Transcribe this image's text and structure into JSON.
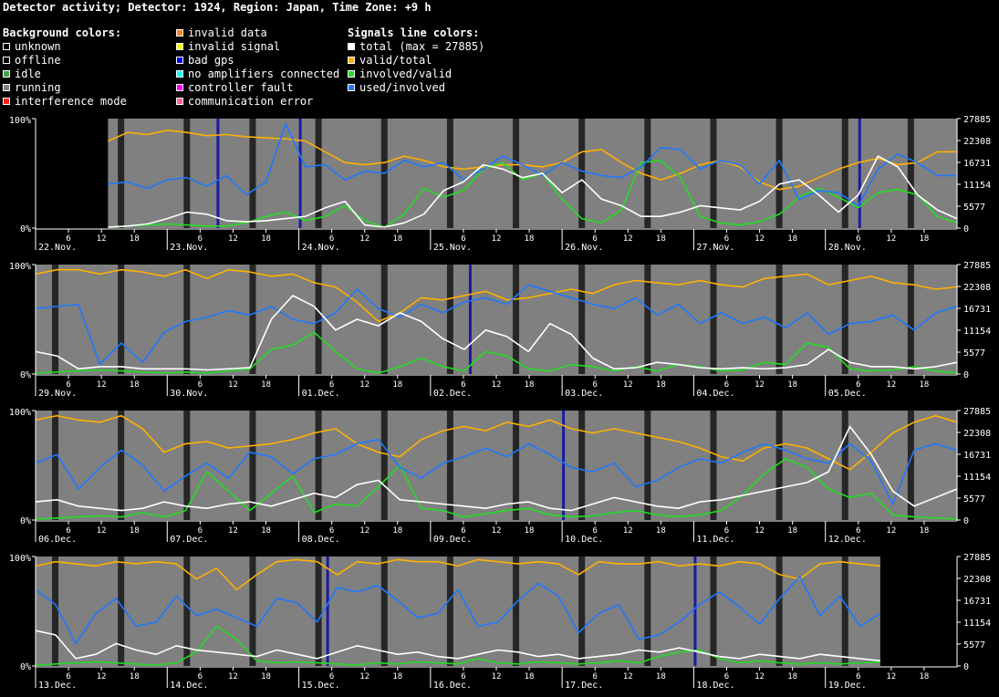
{
  "title": "Detector activity; Detector: 1924, Region: Japan, Time Zone: +9 h",
  "legend": {
    "background_heading": "Background colors:",
    "signals_heading": "Signals line colors:",
    "background_col1": [
      {
        "label": "unknown",
        "color": "#000000"
      },
      {
        "label": "offline",
        "color": "#000000"
      },
      {
        "label": "idle",
        "color": "#44a044"
      },
      {
        "label": "running",
        "color": "#808080"
      },
      {
        "label": "interference mode",
        "color": "#ff2020"
      }
    ],
    "background_col2": [
      {
        "label": "invalid data",
        "color": "#ff8020"
      },
      {
        "label": "invalid signal",
        "color": "#ffff00"
      },
      {
        "label": "bad gps",
        "color": "#0000ff"
      },
      {
        "label": "no amplifiers connected",
        "color": "#00ffff"
      },
      {
        "label": "controller fault",
        "color": "#ff00ff"
      },
      {
        "label": "communication error",
        "color": "#ff6090"
      }
    ],
    "signals": [
      {
        "label": "total (max = 27885)",
        "color": "#ffffff"
      },
      {
        "label": "valid/total",
        "color": "#ffb000"
      },
      {
        "label": "involved/valid",
        "color": "#22dd22"
      },
      {
        "label": "used/involved",
        "color": "#1e78ff"
      }
    ]
  },
  "colors": {
    "running": "#808080",
    "gap": "#262626",
    "bad_gps": "#1a1aa0",
    "total": "#ffffff",
    "valid_total": "#ffb000",
    "involved_valid": "#22dd22",
    "used_involved": "#1e78ff"
  },
  "chart_data": {
    "type": "line",
    "max_total": 27885,
    "left_axis_ticks": [
      "100%",
      "0%"
    ],
    "right_axis_ticks": [
      "27885",
      "22308",
      "16731",
      "11154",
      "5577",
      "0"
    ],
    "hour_ticks": [
      "6",
      "12",
      "18"
    ],
    "panels": [
      {
        "days": [
          "22.Nov.",
          "23.Nov.",
          "24.Nov.",
          "25.Nov.",
          "26.Nov.",
          "27.Nov.",
          "28.Nov."
        ],
        "running_start_hours": 13.2,
        "running_end_hours": 168,
        "bad_gps_hours": [
          33,
          48,
          150
        ],
        "valid_total_pct": [
          80,
          88,
          86,
          90,
          88,
          85,
          86,
          84,
          83,
          82,
          80,
          70,
          60,
          58,
          60,
          66,
          62,
          56,
          54,
          56,
          58,
          58,
          56,
          60,
          70,
          72,
          60,
          50,
          44,
          50,
          58,
          62,
          56,
          42,
          35,
          38,
          46,
          54,
          60,
          64,
          58,
          60,
          70,
          70
        ],
        "involved_valid_pct": [
          0,
          1,
          2,
          3,
          2,
          1,
          1,
          4,
          10,
          14,
          6,
          10,
          20,
          6,
          0,
          12,
          36,
          28,
          34,
          54,
          60,
          44,
          50,
          26,
          8,
          4,
          16,
          60,
          62,
          46,
          10,
          4,
          2,
          5,
          12,
          28,
          36,
          28,
          18,
          32,
          35,
          30,
          10,
          4
        ],
        "used_involved_pct": [
          40,
          42,
          36,
          44,
          46,
          38,
          48,
          30,
          42,
          96,
          56,
          58,
          44,
          52,
          50,
          62,
          56,
          60,
          44,
          54,
          66,
          58,
          48,
          60,
          52,
          48,
          46,
          56,
          74,
          72,
          54,
          62,
          58,
          40,
          62,
          26,
          34,
          32,
          20,
          54,
          68,
          60,
          48,
          48
        ],
        "total_pct": [
          0,
          1,
          3,
          8,
          14,
          12,
          6,
          5,
          6,
          8,
          10,
          18,
          24,
          2,
          0,
          4,
          12,
          34,
          42,
          58,
          54,
          46,
          50,
          32,
          44,
          26,
          20,
          10,
          10,
          14,
          20,
          18,
          16,
          24,
          40,
          44,
          30,
          14,
          30,
          66,
          56,
          30,
          16,
          8
        ]
      },
      {
        "days": [
          "29.Nov.",
          "30.Nov.",
          "01.Dec.",
          "02.Dec.",
          "03.Dec.",
          "04.Dec.",
          "05.Dec."
        ],
        "running_start_hours": 0,
        "running_end_hours": 168,
        "bad_gps_hours": [
          79
        ],
        "valid_total_pct": [
          92,
          96,
          96,
          92,
          96,
          94,
          90,
          96,
          88,
          96,
          94,
          90,
          92,
          84,
          80,
          66,
          48,
          56,
          70,
          68,
          72,
          76,
          68,
          70,
          74,
          78,
          74,
          82,
          86,
          84,
          82,
          86,
          82,
          80,
          88,
          90,
          92,
          82,
          86,
          90,
          84,
          82,
          78,
          80
        ],
        "involved_valid_pct": [
          0,
          1,
          2,
          3,
          2,
          1,
          0,
          1,
          0,
          2,
          4,
          22,
          26,
          38,
          20,
          4,
          0,
          6,
          14,
          6,
          2,
          20,
          16,
          4,
          2,
          8,
          6,
          2,
          6,
          2,
          8,
          6,
          2,
          3,
          10,
          8,
          28,
          24,
          4,
          2,
          3,
          6,
          2,
          0
        ],
        "used_involved_pct": [
          60,
          62,
          64,
          8,
          28,
          10,
          38,
          48,
          52,
          58,
          54,
          62,
          50,
          46,
          56,
          78,
          60,
          52,
          64,
          56,
          66,
          70,
          64,
          82,
          76,
          70,
          64,
          60,
          70,
          54,
          64,
          46,
          56,
          46,
          52,
          42,
          56,
          36,
          46,
          48,
          54,
          40,
          56,
          62
        ],
        "total_pct": [
          20,
          16,
          4,
          6,
          6,
          4,
          4,
          4,
          3,
          4,
          5,
          50,
          72,
          62,
          40,
          50,
          44,
          56,
          48,
          32,
          22,
          40,
          34,
          20,
          46,
          36,
          14,
          4,
          5,
          10,
          8,
          5,
          4,
          5,
          4,
          5,
          8,
          22,
          10,
          6,
          6,
          4,
          6,
          10
        ]
      },
      {
        "days": [
          "06.Dec.",
          "07.Dec.",
          "08.Dec.",
          "09.Dec.",
          "10.Dec.",
          "11.Dec.",
          "12.Dec."
        ],
        "running_start_hours": 0,
        "running_end_hours": 168,
        "bad_gps_hours": [
          96
        ],
        "valid_total_pct": [
          92,
          96,
          92,
          90,
          96,
          84,
          62,
          70,
          72,
          66,
          68,
          70,
          74,
          80,
          84,
          70,
          62,
          58,
          74,
          82,
          86,
          82,
          90,
          86,
          92,
          84,
          80,
          84,
          80,
          76,
          72,
          66,
          58,
          54,
          66,
          70,
          66,
          56,
          46,
          62,
          80,
          90,
          96,
          90
        ],
        "involved_valid_pct": [
          0,
          1,
          2,
          3,
          2,
          6,
          2,
          8,
          44,
          26,
          8,
          24,
          40,
          6,
          14,
          12,
          30,
          50,
          10,
          8,
          2,
          5,
          8,
          10,
          4,
          2,
          3,
          6,
          8,
          4,
          2,
          4,
          8,
          22,
          42,
          56,
          48,
          28,
          20,
          24,
          4,
          2,
          1,
          0
        ],
        "used_involved_pct": [
          52,
          60,
          28,
          48,
          64,
          50,
          26,
          40,
          52,
          38,
          62,
          58,
          42,
          56,
          60,
          70,
          74,
          48,
          38,
          52,
          58,
          66,
          58,
          70,
          60,
          48,
          44,
          52,
          30,
          36,
          48,
          56,
          52,
          62,
          70,
          64,
          56,
          52,
          70,
          54,
          14,
          64,
          70,
          64
        ],
        "total_pct": [
          16,
          18,
          12,
          10,
          8,
          10,
          16,
          12,
          10,
          14,
          16,
          12,
          18,
          24,
          20,
          32,
          36,
          18,
          16,
          14,
          12,
          10,
          14,
          16,
          10,
          8,
          14,
          20,
          16,
          12,
          10,
          16,
          18,
          22,
          26,
          30,
          34,
          44,
          86,
          60,
          26,
          12,
          20,
          28
        ]
      },
      {
        "days": [
          "13.Dec.",
          "14.Dec.",
          "15.Dec.",
          "16.Dec.",
          "17.Dec.",
          "18.Dec.",
          "19.Dec."
        ],
        "running_start_hours": 0,
        "running_end_hours": 154,
        "bad_gps_hours": [
          53,
          120
        ],
        "valid_total_pct": [
          92,
          96,
          94,
          92,
          96,
          94,
          96,
          94,
          80,
          90,
          70,
          84,
          96,
          98,
          96,
          84,
          96,
          94,
          98,
          96,
          96,
          92,
          98,
          96,
          94,
          96,
          94,
          84,
          96,
          94,
          94,
          96,
          92,
          94,
          92,
          96,
          94,
          84,
          80,
          94,
          96,
          94,
          92
        ],
        "involved_valid_pct": [
          0,
          1,
          2,
          3,
          2,
          1,
          0,
          2,
          12,
          36,
          24,
          4,
          2,
          3,
          2,
          1,
          0,
          2,
          1,
          3,
          2,
          1,
          6,
          2,
          1,
          3,
          2,
          1,
          2,
          4,
          2,
          8,
          12,
          14,
          6,
          2,
          4,
          2,
          1,
          2,
          1,
          2,
          3
        ],
        "used_involved_pct": [
          70,
          56,
          20,
          48,
          62,
          36,
          40,
          64,
          46,
          52,
          44,
          36,
          62,
          58,
          40,
          72,
          68,
          74,
          60,
          44,
          48,
          70,
          36,
          40,
          60,
          76,
          64,
          30,
          48,
          56,
          24,
          28,
          40,
          56,
          68,
          54,
          38,
          62,
          82,
          46,
          64,
          36,
          48
        ],
        "total_pct": [
          32,
          28,
          6,
          10,
          20,
          14,
          10,
          18,
          14,
          12,
          10,
          8,
          14,
          10,
          6,
          12,
          18,
          14,
          10,
          12,
          8,
          6,
          10,
          14,
          12,
          8,
          10,
          6,
          8,
          10,
          14,
          12,
          16,
          12,
          8,
          6,
          10,
          8,
          6,
          10,
          8,
          6,
          4
        ]
      }
    ]
  }
}
